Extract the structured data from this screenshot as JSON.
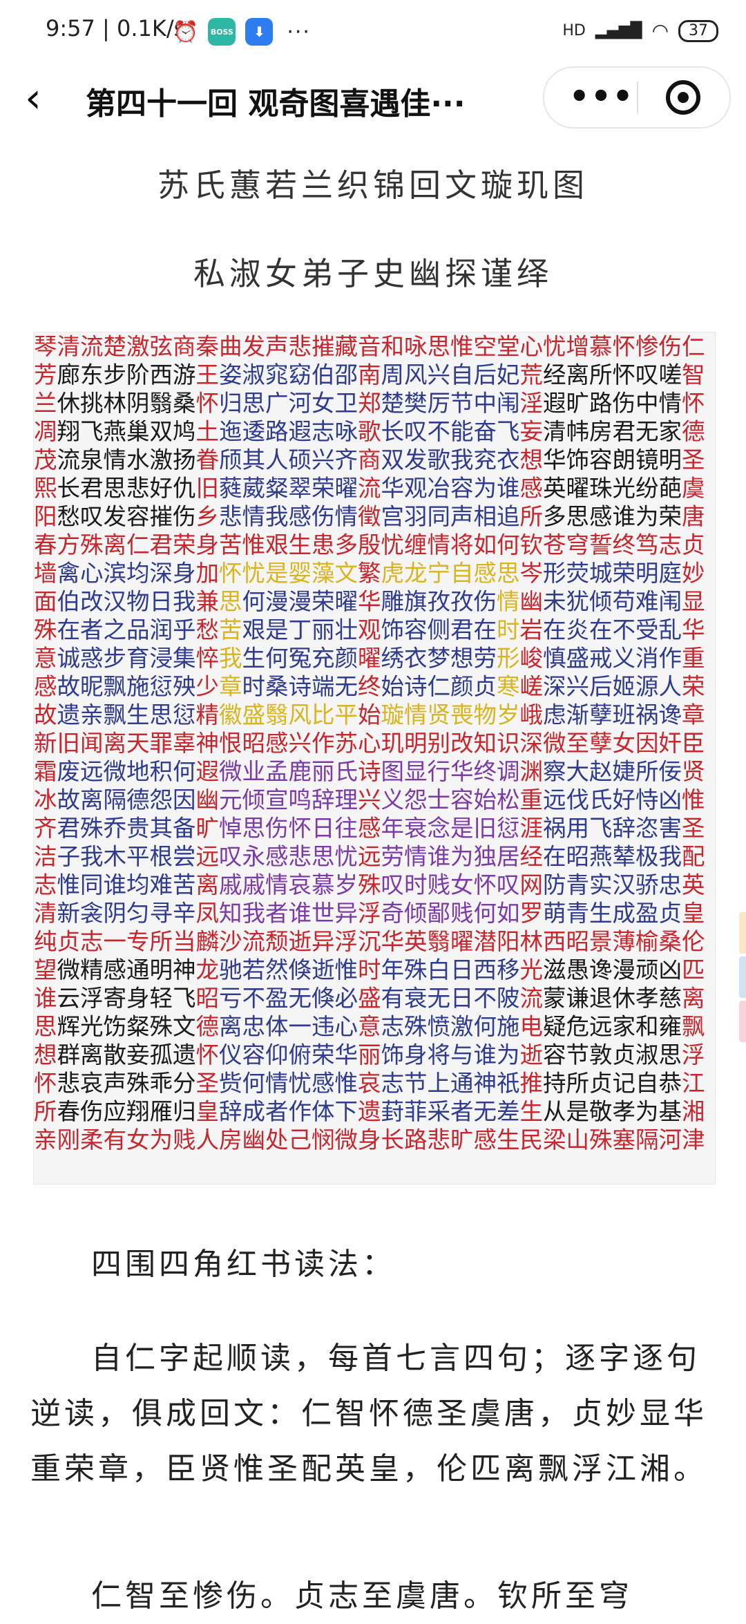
{
  "status_bar": {
    "time": "9:57 | 0.1K/s",
    "boss_label": "BOSS\n直聘",
    "network": "HD",
    "battery": "37",
    "overflow": "···"
  },
  "header": {
    "back_icon": "chevron-left-icon",
    "title": "第四十一回 观奇图喜遇佳···",
    "more_label": "•••",
    "target_icon": "record-target-icon"
  },
  "article": {
    "heading1": "苏氏蕙若兰织锦回文璇玑图",
    "heading2": "私淑女弟子史幽探谨绎",
    "paragraph1": "四围四角红书读法：",
    "paragraph2": "自仁字起顺读，每首七言四句；逐字逐句逆读，俱成回文：仁智怀德圣虞唐，贞妙显华重荣章，臣贤惟圣配英皇，伦匹离飘浮江湘。",
    "paragraph3": "仁智至惨伤。贞志至虞唐。钦所至穹"
  },
  "grid": {
    "colors": {
      "red": "#c8262d",
      "blue": "#2f3b8e",
      "black": "#1a1a1a",
      "purple": "#7b3aa8",
      "yellow": "#d9b41c"
    },
    "rows": [
      "琴清流楚激弦商秦曲发声悲摧藏音和咏思惟空堂心忧增慕怀惨伤仁",
      "芳廊东步阶西游王姿淑窕窈伯邵南周风兴自后妃荒经离所怀叹嗟智",
      "兰休挑林阴翳桑怀归思广河女卫郑楚樊厉节中闱淫遐旷路伤中情怀",
      "凋翔飞燕巢双鸠土迤逶路遐志咏歌长叹不能奋飞妄清帏房君无家德",
      "茂流泉情水激扬眷颀其人硕兴齐商双发歌我兖衣想华饰容朗镜明圣",
      "熙长君思悲好仇旧蕤葳粲翠荣曜流华观冶容为谁感英曜珠光纷葩虞",
      "阳愁叹发容摧伤乡悲情我感伤情徵宫羽同声相追所多思感谁为荣唐",
      "春方殊离仁君荣身苦惟艰生患多殷忧缠情将如何钦苍穹誓终笃志贞",
      "墙禽心滨均深身加怀忧是婴藻文繁虎龙宁自感思岑形荧城荣明庭妙",
      "面伯改汉物日我兼思何漫漫荣曜华雕旗孜孜伤情幽未犹倾苟难闱显",
      "殊在者之品润乎愁苦艰是丁丽壮观饰容侧君在时岩在炎在不受乱华",
      "意诚惑步育浸集悴我生何冤充颜曜绣衣梦想劳形峻慎盛戒义消作重",
      "感故昵飘施愆殃少章时桑诗端无终始诗仁颜贞寒嵯深兴后姬源人荣",
      "故遗亲飘生思愆精徽盛翳风比平始璇情贤喪物岁峨虑渐孽班祸谗章",
      "新旧闻离天罪辜神恨昭感兴作苏心玑明别改知识深微至孽女因奸臣",
      "霜废远微地积何遐微业孟鹿丽氏诗图显行华终调渊察大赵婕所佞贤",
      "冰故离隔德怨因幽元倾宣鸣辞理兴义怨士容始松重远伐氏好恃凶惟",
      "齐君殊乔贵其备旷悼思伤怀日往感年衰念是旧愆涯祸用飞辞恣害圣",
      "洁子我木平根尝远叹永感悲思忧远劳情谁为独居经在昭燕辇极我配",
      "志惟同谁均难苦离戚戚情哀慕岁殊叹时贱女怀叹网防青实汉骄忠英",
      "清新衾阴匀寻辛凤知我者谁世异浮奇倾鄙贱何如罗萌青生成盈贞皇",
      "纯贞志一专所当麟沙流颓逝异浮沉华英翳曜潜阳林西昭景薄榆桑伦",
      "望微精感通明神龙驰若然倏逝惟时年殊白日西移光滋愚谗漫顽凶匹",
      "谁云浮寄身轻飞昭亏不盈无倏必盛有衰无日不陂流蒙谦退休孝慈离",
      "思辉光饬粲殊文德离忠体一违心意志殊愤激何施电疑危远家和雍飘",
      "想群离散妾孤遗怀仪容仰俯荣华丽饰身将与谁为逝容节敦贞淑思浮",
      "怀悲哀声殊乖分圣赀何情忧感惟哀志节上通神祇推持所贞记自恭江",
      "所春伤应翔雁归皇辞成者作体下遗葑菲采者无差生从是敬孝为基湘",
      "亲刚柔有女为贱人房幽处己悯微身长路悲旷感生民梁山殊塞隔河津"
    ]
  }
}
